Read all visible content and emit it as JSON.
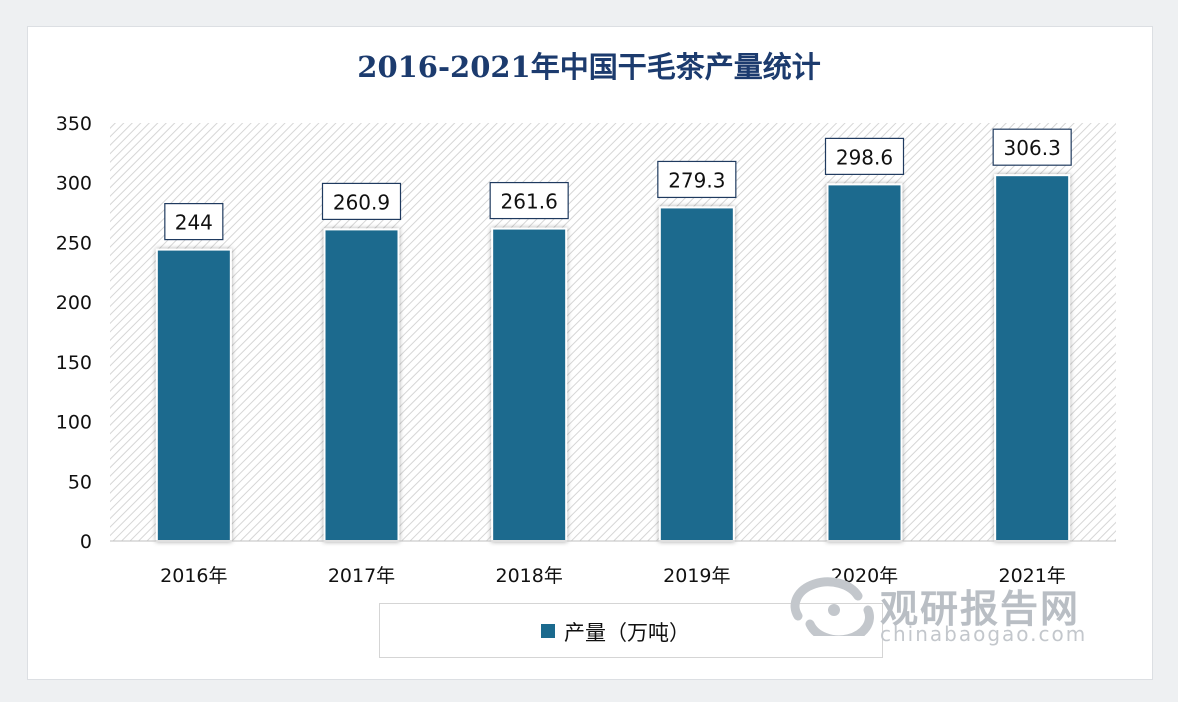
{
  "chart_data": {
    "type": "bar",
    "title": "2016-2021年中国干毛茶产量统计",
    "categories": [
      "2016年",
      "2017年",
      "2018年",
      "2019年",
      "2020年",
      "2021年"
    ],
    "series": [
      {
        "name": "产量（万吨）",
        "values": [
          244,
          260.9,
          261.6,
          279.3,
          298.6,
          306.3
        ],
        "color": "#1b6a8e"
      }
    ],
    "value_labels": [
      "244",
      "260.9",
      "261.6",
      "279.3",
      "298.6",
      "306.3"
    ],
    "ylim": [
      0,
      350
    ],
    "yticks": [
      0,
      50,
      100,
      150,
      200,
      250,
      300,
      350
    ],
    "grid": false,
    "legend": "bottom-center"
  },
  "watermark": {
    "name": "观研报告网",
    "url": "chinabaogao.com"
  }
}
